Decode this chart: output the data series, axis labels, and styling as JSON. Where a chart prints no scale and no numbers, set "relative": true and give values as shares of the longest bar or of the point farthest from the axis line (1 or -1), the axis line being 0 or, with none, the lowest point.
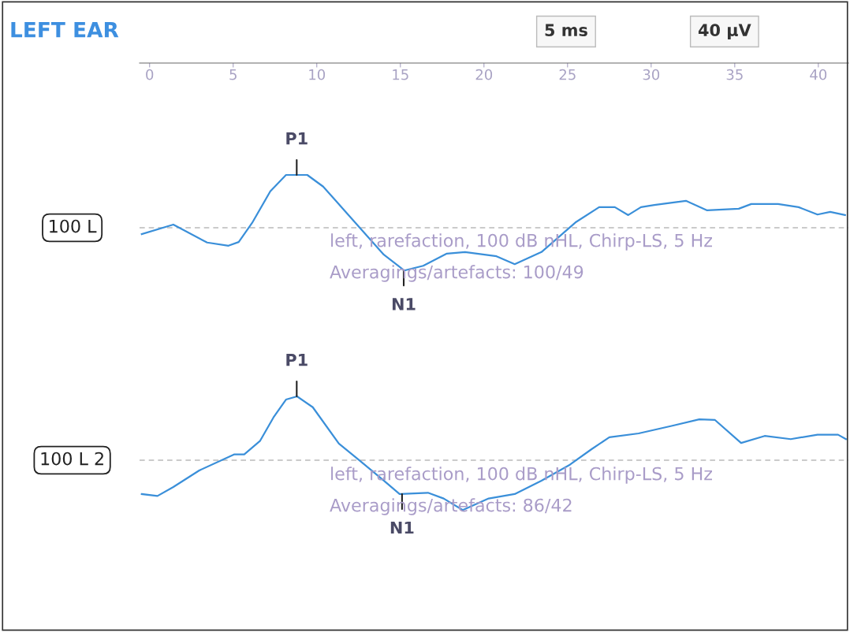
{
  "chart_data": [
    {
      "type": "line",
      "title": "LEFT EAR",
      "relative": true,
      "xlim": [
        -0.6,
        41.8
      ],
      "xticks": [
        0,
        5,
        10,
        15,
        20,
        25,
        30,
        35,
        40
      ],
      "tick_labels": "x",
      "legend": false,
      "grid": false,
      "marker": "none",
      "line_style": "solid",
      "ref_lines": [
        {
          "axis": "y",
          "value": 0,
          "color": "#bbbbbb",
          "line_style": "dashed"
        }
      ],
      "annotations": [
        "5 ms",
        "40 µV",
        "left, rarefaction, 100 dB nHL, Chirp-LS, 5 Hz",
        "Averagings/artefacts: 100/49",
        {
          "text": "P1",
          "x": 8.8,
          "y": 1
        },
        {
          "text": "N1",
          "x": 15.2,
          "y": -0.81
        }
      ],
      "series": [
        {
          "name": "100 L",
          "color": "#3a8fd9",
          "x": [
            -0.47,
            1.42,
            3.44,
            4.72,
            5.33,
            6.13,
            7.22,
            8.16,
            9.43,
            10.38,
            11.65,
            12.74,
            14.01,
            15.24,
            16.37,
            17.78,
            18.87,
            20.75,
            21.84,
            23.44,
            25.47,
            26.89,
            27.83,
            28.63,
            29.39,
            30.19,
            32.08,
            33.35,
            35.24,
            35.99,
            37.59,
            38.82,
            39.95,
            40.71,
            41.6
          ],
          "values": [
            -0.12,
            0.06,
            -0.28,
            -0.34,
            -0.27,
            0.09,
            0.69,
            1,
            1,
            0.78,
            0.33,
            -0.06,
            -0.51,
            -0.81,
            -0.72,
            -0.49,
            -0.46,
            -0.54,
            -0.69,
            -0.46,
            0.1,
            0.39,
            0.39,
            0.24,
            0.39,
            0.43,
            0.51,
            0.33,
            0.36,
            0.45,
            0.45,
            0.39,
            0.25,
            0.3,
            0.24
          ]
        }
      ]
    },
    {
      "type": "line",
      "relative": true,
      "xlim": [
        -0.6,
        41.8
      ],
      "tick_labels": false,
      "legend": false,
      "grid": false,
      "marker": "none",
      "line_style": "solid",
      "ref_lines": [
        {
          "axis": "y",
          "value": 0,
          "color": "#bbbbbb",
          "line_style": "dashed"
        }
      ],
      "annotations": [
        "left, rarefaction, 100 dB nHL, Chirp-LS, 5 Hz",
        "Averagings/artefacts: 86/42",
        {
          "text": "P1",
          "x": 8.8,
          "y": 1
        },
        {
          "text": "N1",
          "x": 15.1,
          "y": -0.53
        }
      ],
      "series": [
        {
          "name": "100 L 2",
          "color": "#3a8fd9",
          "x": [
            -0.47,
            0.47,
            1.42,
            2.97,
            5.05,
            5.66,
            6.6,
            7.41,
            8.16,
            8.82,
            9.76,
            11.32,
            12.59,
            14.01,
            14.95,
            16.65,
            17.59,
            18.73,
            20.28,
            21.84,
            23.44,
            25.14,
            26.42,
            27.5,
            29.25,
            31.27,
            32.88,
            33.82,
            35.38,
            36.79,
            38.35,
            39.95,
            41.18,
            41.65
          ],
          "values": [
            -0.53,
            -0.56,
            -0.42,
            -0.16,
            0.09,
            0.09,
            0.3,
            0.67,
            0.95,
            1,
            0.83,
            0.26,
            -0.01,
            -0.32,
            -0.53,
            -0.51,
            -0.6,
            -0.78,
            -0.6,
            -0.53,
            -0.32,
            -0.07,
            0.17,
            0.36,
            0.42,
            0.54,
            0.64,
            0.63,
            0.27,
            0.38,
            0.33,
            0.4,
            0.4,
            0.33
          ]
        }
      ]
    }
  ]
}
